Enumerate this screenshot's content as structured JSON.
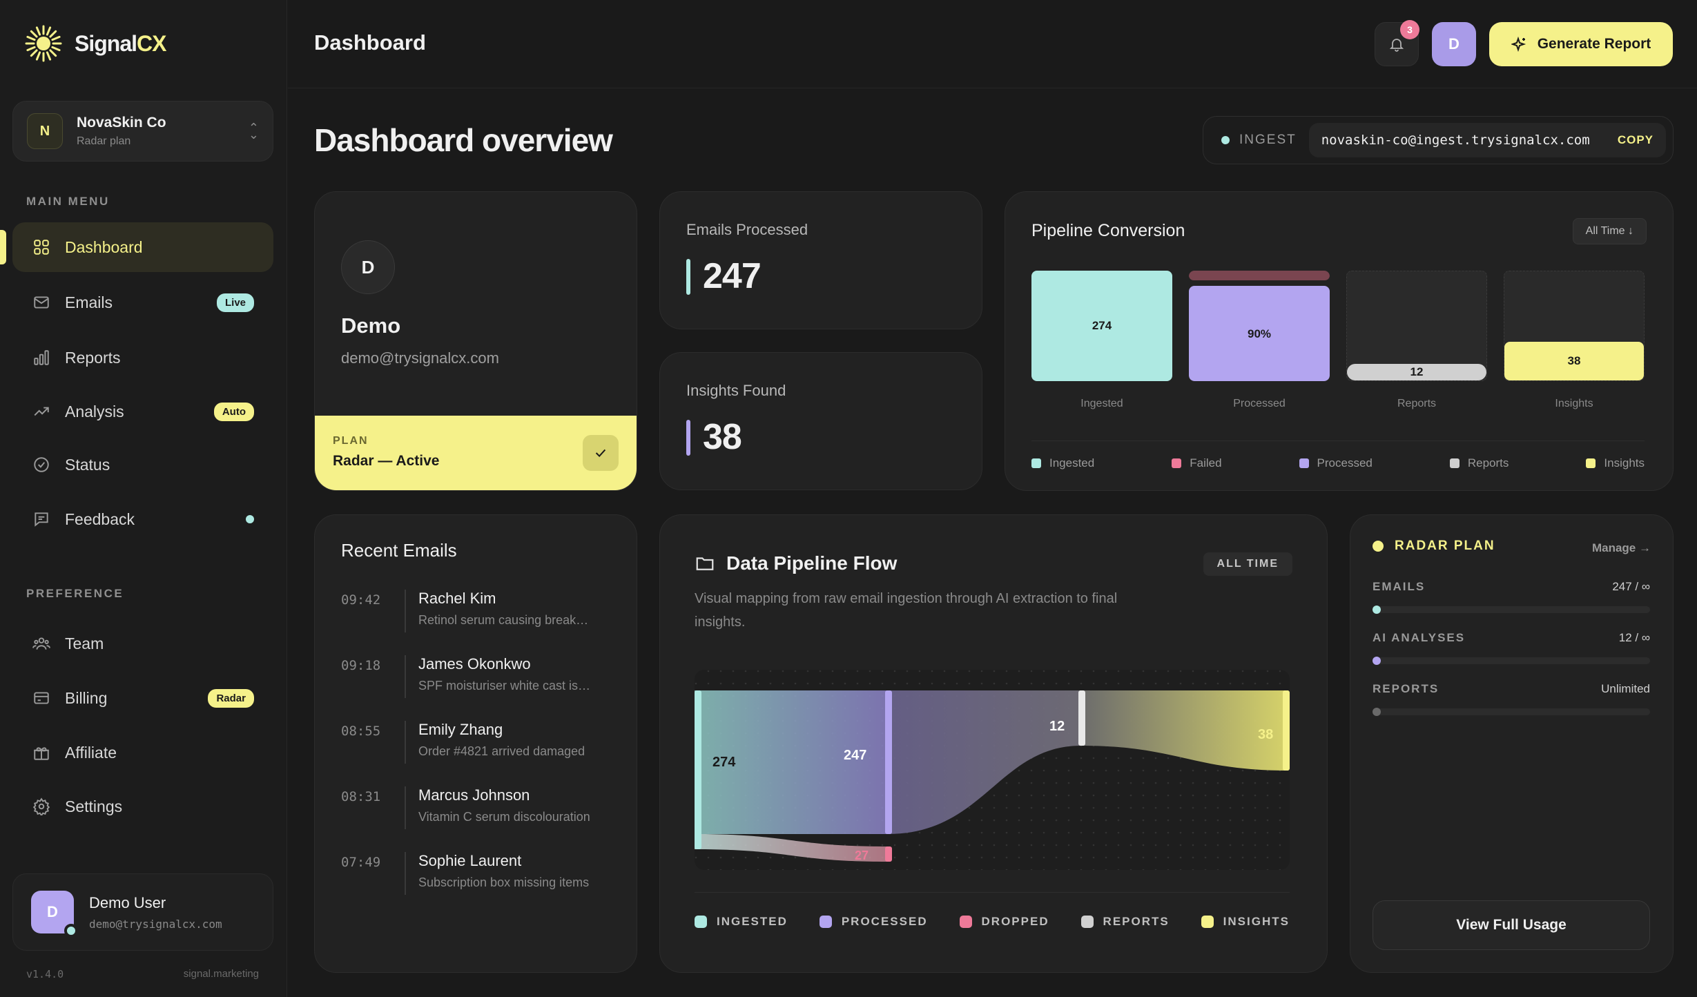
{
  "brand": {
    "name_main": "Signal",
    "name_accent": "CX"
  },
  "org": {
    "initial": "N",
    "name": "NovaSkin Co",
    "plan": "Radar plan"
  },
  "sidebar": {
    "main_menu_title": "MAIN MENU",
    "preference_title": "PREFERENCE",
    "items": [
      {
        "label": "Dashboard",
        "icon": "grid-icon",
        "active": true
      },
      {
        "label": "Emails",
        "icon": "mail-icon",
        "badge": "Live"
      },
      {
        "label": "Reports",
        "icon": "bar-chart-icon"
      },
      {
        "label": "Analysis",
        "icon": "trend-icon",
        "badge": "Auto"
      },
      {
        "label": "Status",
        "icon": "check-circle-icon"
      },
      {
        "label": "Feedback",
        "icon": "message-icon"
      }
    ],
    "pref_items": [
      {
        "label": "Team",
        "icon": "team-icon"
      },
      {
        "label": "Billing",
        "icon": "card-icon",
        "badge": "Radar"
      },
      {
        "label": "Affiliate",
        "icon": "gift-icon"
      },
      {
        "label": "Settings",
        "icon": "gear-icon"
      }
    ],
    "user": {
      "initial": "D",
      "name": "Demo User",
      "email": "demo@trysignalcx.com"
    },
    "version": "v1.4.0",
    "footer_link": "signal.marketing"
  },
  "header": {
    "title": "Dashboard",
    "notifications": "3",
    "avatar": "D",
    "generate_label": "Generate Report"
  },
  "main": {
    "title": "Dashboard overview",
    "ingest": {
      "label": "INGEST",
      "address": "novaskin-co@ingest.trysignalcx.com",
      "copy_label": "COPY"
    },
    "profile": {
      "initial": "D",
      "name": "Demo",
      "email": "demo@trysignalcx.com",
      "plan_label": "PLAN",
      "plan_value": "Radar — Active"
    },
    "stats": [
      {
        "label": "Emails Processed",
        "value": "247",
        "color": "#aee9e2"
      },
      {
        "label": "Insights Found",
        "value": "38",
        "color": "#b3a5f0"
      }
    ],
    "pipeline_conversion": {
      "title": "Pipeline Conversion",
      "filter": "All Time ↓",
      "stages": [
        {
          "name": "Ingested",
          "label": "274",
          "fill": 1.0,
          "color": "#aee9e2"
        },
        {
          "name": "Processed",
          "label": "90%",
          "fill": 0.9,
          "color": "#b3a5f0",
          "failed_color": "#7a4550"
        },
        {
          "name": "Reports",
          "label": "12",
          "fill": 0.0,
          "color": "#d0d0d0"
        },
        {
          "name": "Insights",
          "label": "38",
          "fill": 0.35,
          "color": "#f5f18a"
        }
      ],
      "legend": [
        {
          "label": "Ingested",
          "color": "#aee9e2"
        },
        {
          "label": "Failed",
          "color": "#ee7a99"
        },
        {
          "label": "Processed",
          "color": "#b3a5f0"
        },
        {
          "label": "Reports",
          "color": "#d0d0d0"
        },
        {
          "label": "Insights",
          "color": "#f5f18a"
        }
      ]
    },
    "recent_emails": {
      "title": "Recent Emails",
      "items": [
        {
          "time": "09:42",
          "name": "Rachel Kim",
          "subject": "Retinol serum causing break…"
        },
        {
          "time": "09:18",
          "name": "James Okonkwo",
          "subject": "SPF moisturiser white cast is…"
        },
        {
          "time": "08:55",
          "name": "Emily Zhang",
          "subject": "Order #4821 arrived damaged"
        },
        {
          "time": "08:31",
          "name": "Marcus Johnson",
          "subject": "Vitamin C serum discolouration"
        },
        {
          "time": "07:49",
          "name": "Sophie Laurent",
          "subject": "Subscription box missing items"
        }
      ]
    },
    "data_flow": {
      "title": "Data Pipeline Flow",
      "tag": "ALL TIME",
      "description": "Visual mapping from raw email ingestion through AI extraction to final insights.",
      "nodes": [
        {
          "label": "274"
        },
        {
          "label": "247"
        },
        {
          "label": "12"
        },
        {
          "label": "38"
        },
        {
          "label": "27"
        }
      ],
      "legend": [
        {
          "label": "INGESTED",
          "color": "#aee9e2"
        },
        {
          "label": "PROCESSED",
          "color": "#b3a5f0"
        },
        {
          "label": "DROPPED",
          "color": "#ee7a99"
        },
        {
          "label": "REPORTS",
          "color": "#d0d0d0"
        },
        {
          "label": "INSIGHTS",
          "color": "#f5f18a"
        }
      ]
    },
    "radar_plan": {
      "title": "RADAR PLAN",
      "manage": "Manage →",
      "usage": [
        {
          "label": "EMAILS",
          "value": "247 / ∞",
          "color": "#aee9e2"
        },
        {
          "label": "AI ANALYSES",
          "value": "12 / ∞",
          "color": "#b3a5f0"
        },
        {
          "label": "REPORTS",
          "value": "Unlimited",
          "color": "#6a6a6a"
        }
      ],
      "button": "View Full Usage"
    }
  }
}
